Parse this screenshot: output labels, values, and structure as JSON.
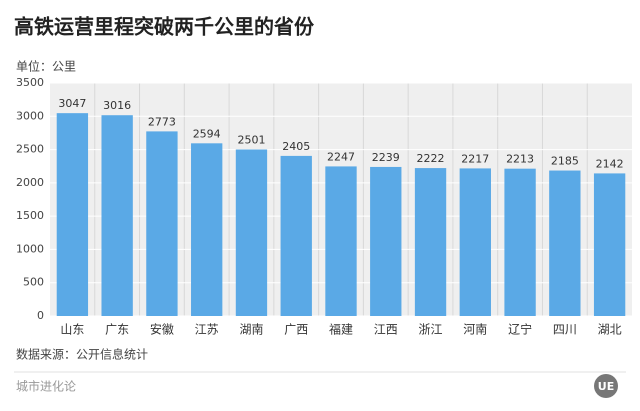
{
  "chart_data": {
    "type": "bar",
    "title": "高铁运营里程突破两千公里的省份",
    "subtitle": "单位：公里",
    "source": "数据来源：公开信息统计",
    "footer": "城市进化论",
    "categories": [
      "山东",
      "广东",
      "安徽",
      "江苏",
      "湖南",
      "广西",
      "福建",
      "江西",
      "浙江",
      "河南",
      "辽宁",
      "四川",
      "湖北"
    ],
    "values": [
      3047,
      3016,
      2773,
      2594,
      2501,
      2405,
      2247,
      2239,
      2222,
      2217,
      2213,
      2185,
      2142
    ],
    "color": "#5aa9e6",
    "ylim": [
      0,
      3500
    ],
    "yticks": [
      0,
      500,
      1000,
      1500,
      2000,
      2500,
      3000,
      3500
    ],
    "grid": true
  }
}
